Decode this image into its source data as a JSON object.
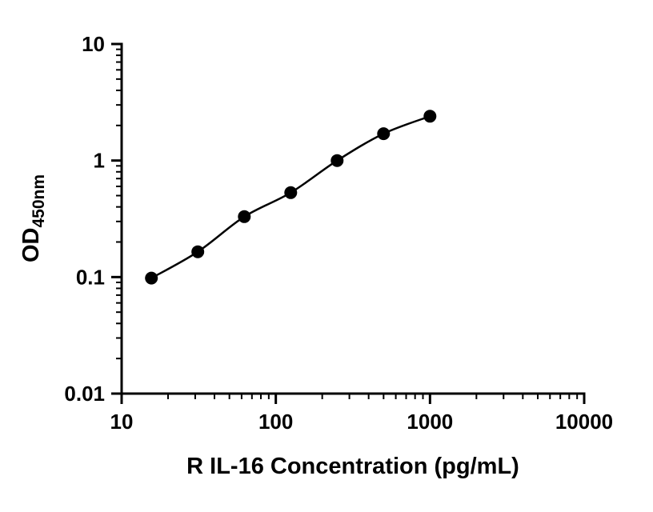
{
  "figure": {
    "background": "#ffffff"
  },
  "chart_data": {
    "type": "scatter",
    "title": "",
    "xlabel": "R IL-16 Concentration (pg/mL)",
    "ylabel_main": "OD",
    "ylabel_sub": "450nm",
    "x_scale": "log",
    "y_scale": "log",
    "xlim": [
      10,
      10000
    ],
    "ylim": [
      0.01,
      10
    ],
    "x_ticks": [
      10,
      100,
      1000,
      10000
    ],
    "x_tick_labels": [
      "10",
      "100",
      "1000",
      "10000"
    ],
    "y_ticks": [
      0.01,
      0.1,
      1,
      10
    ],
    "y_tick_labels": [
      "0.01",
      "0.1",
      "1",
      "10"
    ],
    "grid": false,
    "legend": "none",
    "axis_color": "#000000",
    "marker": {
      "shape": "circle",
      "color": "#000000",
      "radius": 8
    },
    "line": {
      "color": "#000000",
      "width": 2.5
    },
    "points": [
      {
        "x": 15.6,
        "y": 0.098
      },
      {
        "x": 31.2,
        "y": 0.165
      },
      {
        "x": 62.5,
        "y": 0.33
      },
      {
        "x": 125,
        "y": 0.53
      },
      {
        "x": 250,
        "y": 1.0
      },
      {
        "x": 500,
        "y": 1.7
      },
      {
        "x": 1000,
        "y": 2.4
      }
    ]
  }
}
